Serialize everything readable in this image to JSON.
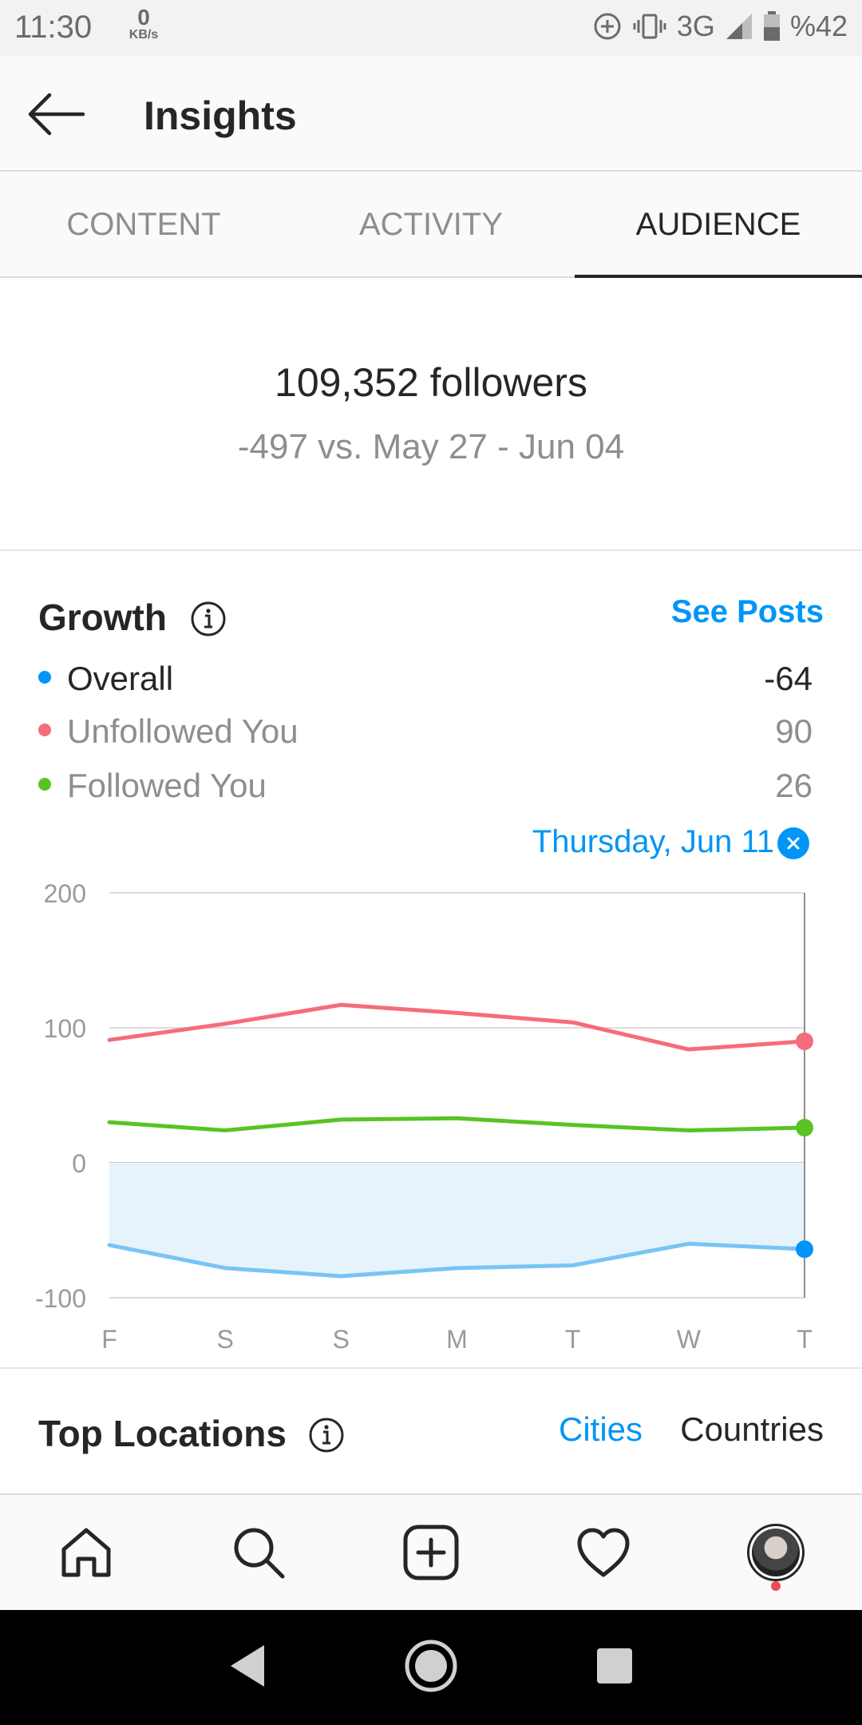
{
  "status": {
    "time": "11:30",
    "speed_value": "0",
    "speed_unit": "KB/s",
    "network": "3G",
    "battery": "%42"
  },
  "header": {
    "title": "Insights"
  },
  "tabs": [
    {
      "label": "CONTENT"
    },
    {
      "label": "ACTIVITY"
    },
    {
      "label": "AUDIENCE",
      "active": true
    }
  ],
  "summary": {
    "followers": "109,352 followers",
    "delta": "-497 vs. May 27 - Jun 04"
  },
  "growth": {
    "title": "Growth",
    "see_posts": "See Posts",
    "legend": [
      {
        "label": "Overall",
        "value": "-64",
        "color": "#0095f6"
      },
      {
        "label": "Unfollowed You",
        "value": "90",
        "color": "#f56c7a"
      },
      {
        "label": "Followed You",
        "value": "26",
        "color": "#58c322"
      }
    ],
    "selected_date": "Thursday, Jun 11"
  },
  "chart_data": {
    "type": "line",
    "categories": [
      "F",
      "S",
      "S",
      "M",
      "T",
      "W",
      "T"
    ],
    "ylim": [
      -100,
      200
    ],
    "yticks": [
      200,
      100,
      0,
      -100
    ],
    "grid": true,
    "selected_index": 6,
    "series": [
      {
        "name": "Unfollowed You",
        "color": "#f56c7a",
        "values": [
          91,
          103,
          117,
          111,
          104,
          84,
          90
        ]
      },
      {
        "name": "Followed You",
        "color": "#58c322",
        "values": [
          30,
          24,
          32,
          33,
          28,
          24,
          26
        ]
      },
      {
        "name": "Overall",
        "color": "#78c4f5",
        "fill": "#e6f3fc",
        "point_color": "#0095f6",
        "values": [
          -61,
          -78,
          -84,
          -78,
          -76,
          -60,
          -64
        ]
      }
    ]
  },
  "locations": {
    "title": "Top Locations",
    "options": [
      "Cities",
      "Countries"
    ],
    "selected": "Cities"
  }
}
